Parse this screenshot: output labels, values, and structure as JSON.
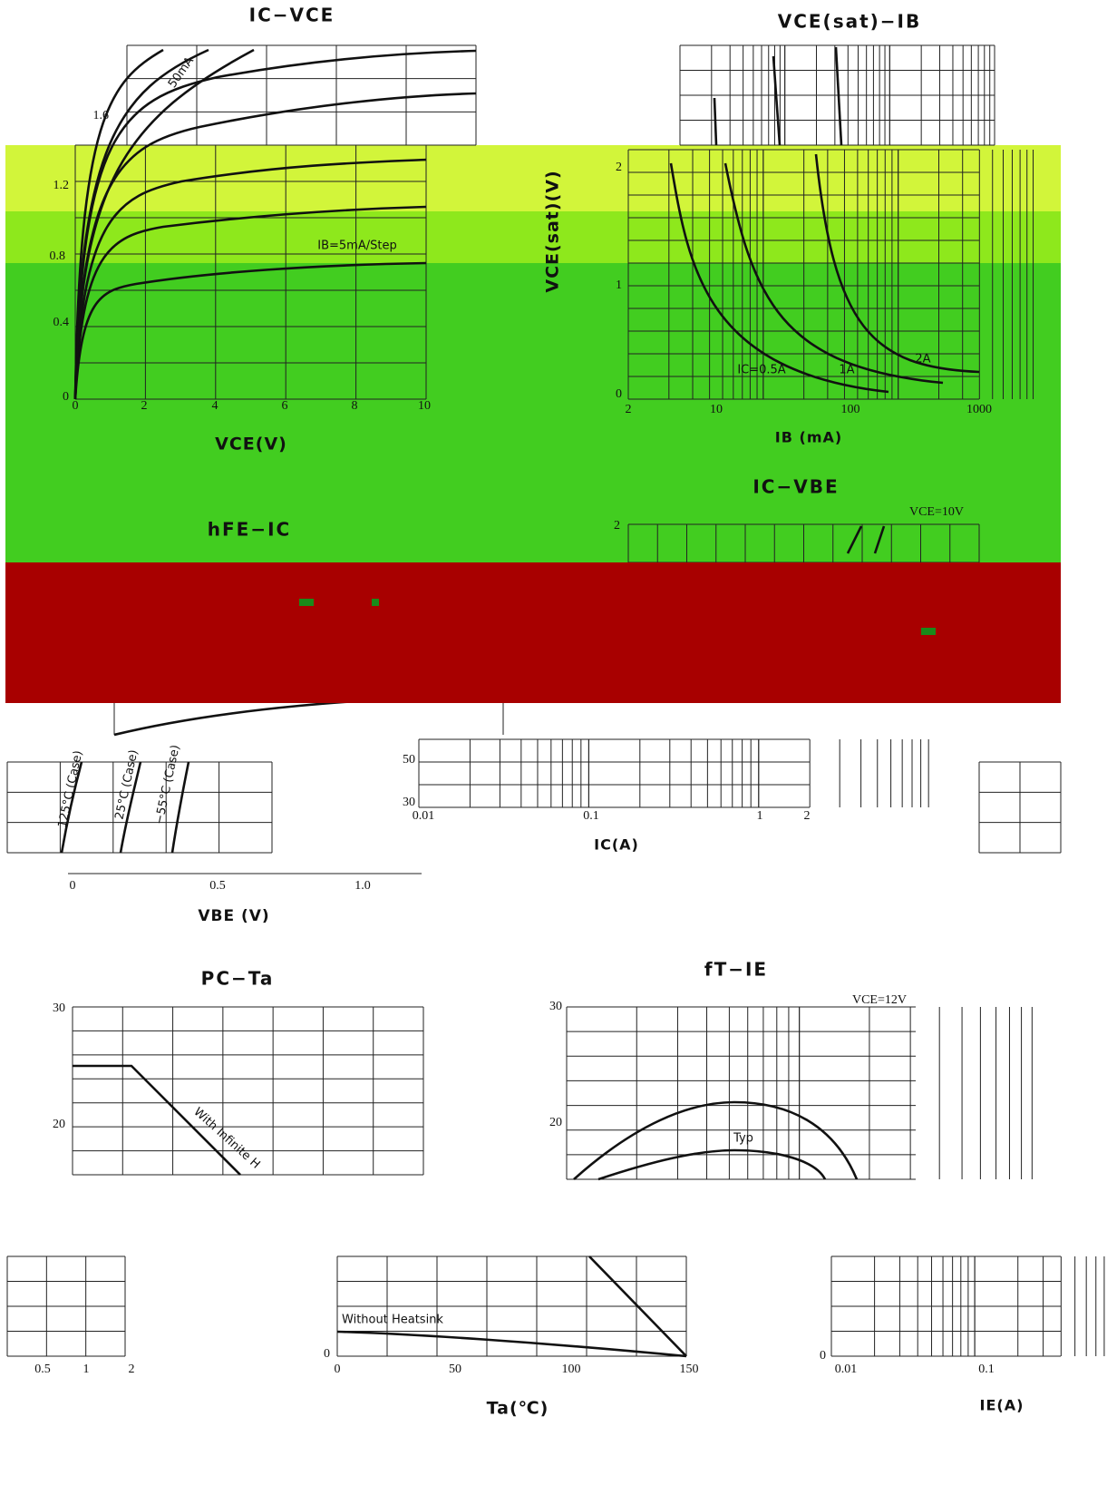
{
  "ic_vce": {
    "title": "IC−VCE",
    "y_ticks": [
      "1.6",
      "1.2",
      "0.8",
      "0.4",
      "0"
    ],
    "x_ticks": [
      "0",
      "2",
      "4",
      "6",
      "8",
      "10"
    ],
    "x_label": "VCE(V)",
    "curve_labels": [
      "50mA",
      "IB=5mA/Step"
    ]
  },
  "vce_sat_ib": {
    "title": "VCE(sat)−IB",
    "y_label": "VCE(sat)(V)",
    "y_ticks": [
      "2",
      "1",
      "0"
    ],
    "x_ticks": [
      "2",
      "10",
      "100",
      "1000"
    ],
    "x_label": "IB (mA)",
    "curve_labels": [
      "IC=0.5A",
      "1A",
      "2A"
    ]
  },
  "ic_vbe": {
    "title": "IC−VBE",
    "condition": "VCE=10V",
    "y_ticks": [
      "2"
    ],
    "curve_labels": [
      "125°C (Case)",
      "25°C (Case)",
      "−55°C (Case)"
    ],
    "x_ticks": [
      "0",
      "0.5",
      "1.0"
    ],
    "x_label": "VBE (V)"
  },
  "hfe_ic": {
    "title": "hFE−IC",
    "y_ticks": [
      "50",
      "30"
    ],
    "x_ticks": [
      "0.01",
      "0.1",
      "1",
      "2"
    ],
    "x_label": "IC(A)"
  },
  "pc_ta": {
    "title": "PC−Ta",
    "y_ticks": [
      "30",
      "20",
      "0"
    ],
    "curve_labels": [
      "With Infinite H",
      "Without Heatsink"
    ],
    "x_ticks": [
      "0",
      "50",
      "100",
      "150"
    ],
    "x_label": "Ta(℃)"
  },
  "ft_ie": {
    "title": "fT−IE",
    "condition": "VCE=12V",
    "y_ticks": [
      "30",
      "20",
      "0"
    ],
    "curve_labels": [
      "Typ"
    ],
    "x_ticks": [
      "0.01",
      "0.1"
    ],
    "x_label": "IE(A)"
  },
  "fragment": {
    "x_ticks": [
      "0.5",
      "1",
      "2"
    ]
  }
}
